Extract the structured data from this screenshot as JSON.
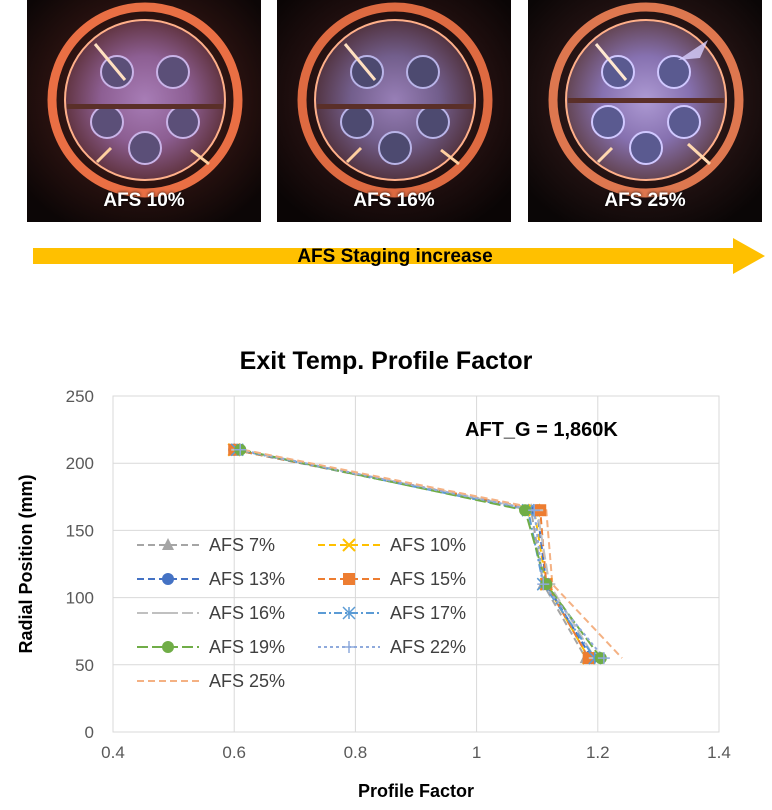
{
  "photos": [
    {
      "label": "AFS 10%"
    },
    {
      "label": "AFS 16%"
    },
    {
      "label": "AFS 25%"
    }
  ],
  "staging_arrow": {
    "label": "AFS Staging increase",
    "color": "#FFC000"
  },
  "chart_data": {
    "type": "line",
    "title": "Exit Temp. Profile Factor",
    "annotation": "AFT_G = 1,860K",
    "xlabel": "Profile Factor",
    "ylabel": "Radial Position (mm)",
    "xlim": [
      0.4,
      1.4
    ],
    "ylim": [
      0,
      250
    ],
    "xticks": [
      0.4,
      0.6,
      0.8,
      1,
      1.2,
      1.4
    ],
    "yticks": [
      0,
      50,
      100,
      150,
      200,
      250
    ],
    "xtick_labels": [
      "0.4",
      "0.6",
      "0.8",
      "1",
      "1.2",
      "1.4"
    ],
    "ytick_labels": [
      "0",
      "50",
      "100",
      "150",
      "200",
      "250"
    ],
    "grid": true,
    "legend_position": "left",
    "y": [
      210,
      165,
      110,
      55
    ],
    "series": [
      {
        "name": "AFS 7%",
        "color": "#A5A5A5",
        "marker": "triangle",
        "dash": "dash",
        "x": [
          0.6,
          1.09,
          1.11,
          1.18
        ]
      },
      {
        "name": "AFS 10%",
        "color": "#FFC000",
        "marker": "x",
        "dash": "dash",
        "x": [
          0.6,
          1.095,
          1.115,
          1.185
        ]
      },
      {
        "name": "AFS 13%",
        "color": "#4472C4",
        "marker": "circle",
        "dash": "dash",
        "x": [
          0.6,
          1.1,
          1.115,
          1.19
        ]
      },
      {
        "name": "AFS 15%",
        "color": "#ED7D31",
        "marker": "square",
        "dash": "dash",
        "x": [
          0.6,
          1.105,
          1.115,
          1.185
        ]
      },
      {
        "name": "AFS 16%",
        "color": "#C0C0C0",
        "marker": "dash",
        "dash": "longdash",
        "x": [
          0.605,
          1.1,
          1.12,
          1.195
        ]
      },
      {
        "name": "AFS 17%",
        "color": "#5B9BD5",
        "marker": "asterisk",
        "dash": "dashdot",
        "x": [
          0.605,
          1.085,
          1.11,
          1.195
        ]
      },
      {
        "name": "AFS 19%",
        "color": "#70AD47",
        "marker": "circle",
        "dash": "longdash",
        "x": [
          0.61,
          1.08,
          1.115,
          1.205
        ]
      },
      {
        "name": "AFS 22%",
        "color": "#8FAADC",
        "marker": "plus",
        "dash": "dot",
        "x": [
          0.61,
          1.095,
          1.11,
          1.21
        ]
      },
      {
        "name": "AFS 25%",
        "color": "#F4B183",
        "marker": "none",
        "dash": "dash",
        "x": [
          0.615,
          1.115,
          1.125,
          1.24
        ]
      }
    ]
  }
}
